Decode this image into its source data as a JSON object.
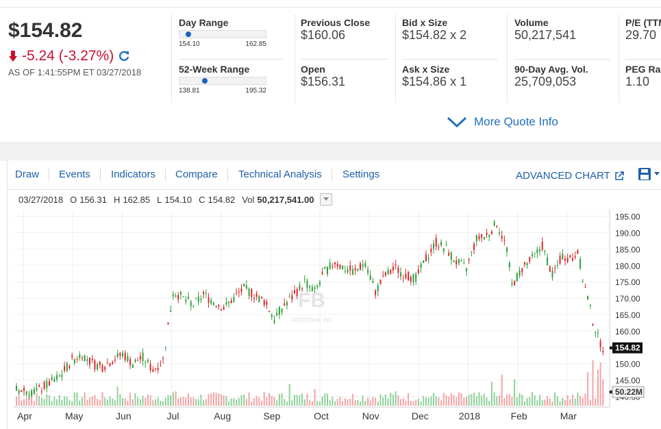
{
  "quote": {
    "price": "$154.82",
    "change": "-5.24 (-3.27%)",
    "as_of": "AS OF 1:41:55PM ET 03/27/2018"
  },
  "ranges": {
    "day": {
      "label": "Day Range",
      "low": "154.10",
      "high": "162.85",
      "position": 0.08
    },
    "week52": {
      "label": "52-Week Range",
      "low": "138.81",
      "high": "195.32",
      "position": 0.28
    }
  },
  "stats": {
    "prev_close": {
      "label": "Previous Close",
      "value": "$160.06"
    },
    "open": {
      "label": "Open",
      "value": "$156.31"
    },
    "bid": {
      "label": "Bid x Size",
      "value": "$154.82 x 2"
    },
    "ask": {
      "label": "Ask x Size",
      "value": "$154.86 x 1"
    },
    "volume": {
      "label": "Volume",
      "value": "50,217,541"
    },
    "avg_vol": {
      "label": "90-Day Avg. Vol.",
      "value": "25,709,053"
    },
    "pe": {
      "label": "P/E (TTM)",
      "value": "29.70"
    },
    "peg": {
      "label": "PEG Ratio",
      "value": "1.10"
    }
  },
  "more_quote": "More Quote Info",
  "toolbar": {
    "items": [
      "Draw",
      "Events",
      "Indicators",
      "Compare",
      "Technical Analysis",
      "Settings"
    ],
    "advanced": "ADVANCED CHART"
  },
  "ohlc": {
    "date": "03/27/2018",
    "o_label": "O",
    "o": "156.31",
    "h_label": "H",
    "h": "162.85",
    "l_label": "L",
    "l": "154.10",
    "c_label": "C",
    "c": "154.82",
    "vol_label": "Vol",
    "vol": "50,217,541.00"
  },
  "colors": {
    "up": "#2e9e3a",
    "down": "#d9252b",
    "link": "#1f6fbf",
    "negative": "#c8102e"
  },
  "chart_data": {
    "type": "candlestick",
    "x_labels": [
      "Apr",
      "May",
      "Jun",
      "Jul",
      "Aug",
      "Sep",
      "Oct",
      "Nov",
      "Dec",
      "2018",
      "Feb",
      "Mar"
    ],
    "y_ticks": [
      "195.00",
      "190.00",
      "185.00",
      "180.00",
      "175.00",
      "170.00",
      "165.00",
      "160.00",
      "155.00",
      "150.00",
      "145.00",
      "140.00"
    ],
    "ylim": [
      138,
      197
    ],
    "last_price_label": "154.82",
    "last_volume_label": "50.22M",
    "watermark": "FB",
    "watermark_sub": "FACEBOOK INC",
    "close_path": [
      [
        0,
        142
      ],
      [
        8,
        141.5
      ],
      [
        12,
        143.5
      ],
      [
        17,
        146
      ],
      [
        22,
        151
      ],
      [
        26,
        153
      ],
      [
        30,
        150
      ],
      [
        34,
        149
      ],
      [
        38,
        151
      ],
      [
        42,
        153
      ],
      [
        46,
        150
      ],
      [
        50,
        152
      ],
      [
        54,
        148
      ],
      [
        58,
        151
      ],
      [
        62,
        172
      ],
      [
        66,
        170
      ],
      [
        70,
        168
      ],
      [
        74,
        171
      ],
      [
        78,
        169
      ],
      [
        82,
        167
      ],
      [
        86,
        170
      ],
      [
        90,
        173
      ],
      [
        94,
        171
      ],
      [
        98,
        169
      ],
      [
        102,
        164
      ],
      [
        106,
        168
      ],
      [
        110,
        171
      ],
      [
        114,
        175
      ],
      [
        118,
        172
      ],
      [
        122,
        178
      ],
      [
        126,
        181
      ],
      [
        130,
        179
      ],
      [
        134,
        178
      ],
      [
        138,
        181
      ],
      [
        142,
        172
      ],
      [
        146,
        177
      ],
      [
        150,
        179
      ],
      [
        154,
        177
      ],
      [
        158,
        176
      ],
      [
        162,
        182
      ],
      [
        166,
        187
      ],
      [
        170,
        185
      ],
      [
        174,
        181
      ],
      [
        178,
        179
      ],
      [
        182,
        188
      ],
      [
        186,
        189
      ],
      [
        190,
        193
      ],
      [
        194,
        185
      ],
      [
        196,
        174
      ],
      [
        200,
        179
      ],
      [
        204,
        182
      ],
      [
        208,
        186
      ],
      [
        212,
        177
      ],
      [
        216,
        183
      ],
      [
        220,
        182
      ],
      [
        222,
        185
      ],
      [
        224,
        176
      ],
      [
        226,
        170
      ],
      [
        228,
        163
      ],
      [
        230,
        158
      ],
      [
        232,
        154.82
      ]
    ],
    "volume_spikes": [
      [
        6,
        0.35
      ],
      [
        40,
        0.4
      ],
      [
        63,
        0.3
      ],
      [
        108,
        0.45
      ],
      [
        118,
        0.35
      ],
      [
        150,
        0.3
      ],
      [
        188,
        0.5
      ],
      [
        192,
        0.65
      ],
      [
        197,
        0.55
      ],
      [
        226,
        0.7
      ],
      [
        228,
        0.95
      ],
      [
        230,
        0.75
      ],
      [
        231,
        0.9
      ],
      [
        232,
        0.55
      ]
    ]
  }
}
